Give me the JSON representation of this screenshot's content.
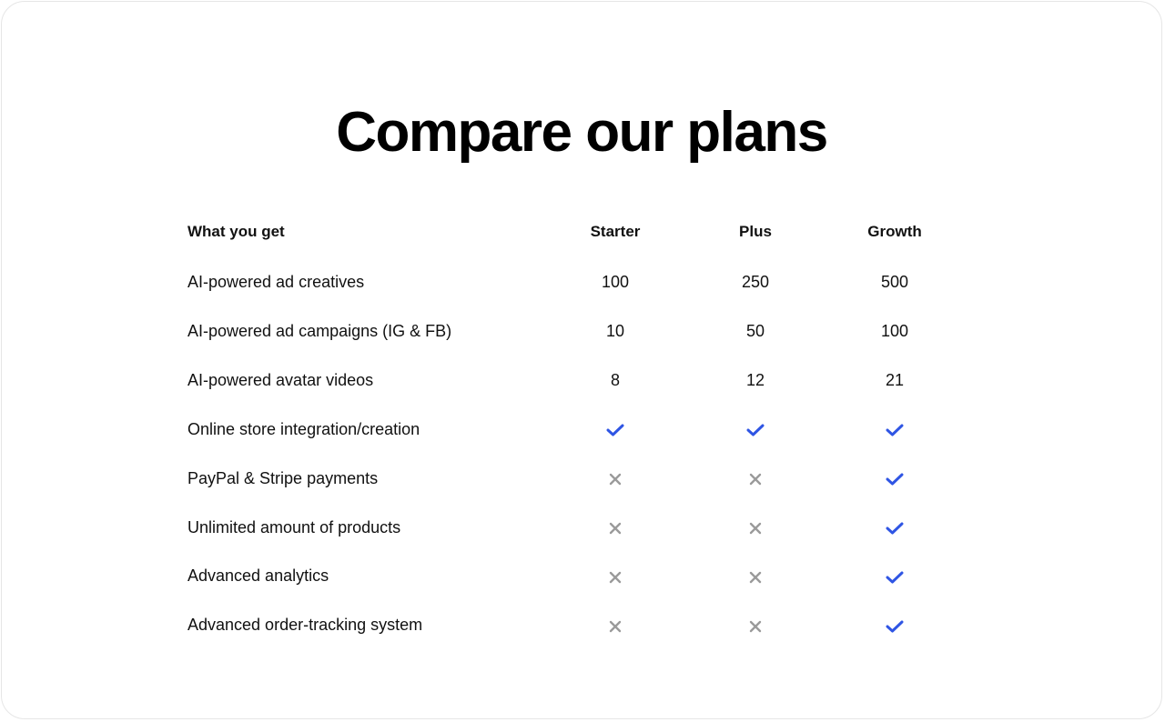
{
  "title": "Compare our plans",
  "table": {
    "header": {
      "label": "What you get",
      "plans": [
        "Starter",
        "Plus",
        "Growth"
      ]
    },
    "rows": [
      {
        "label": "AI-powered ad creatives",
        "values": [
          "100",
          "250",
          "500"
        ]
      },
      {
        "label": "AI-powered ad campaigns (IG & FB)",
        "values": [
          "10",
          "50",
          "100"
        ]
      },
      {
        "label": "AI-powered avatar videos",
        "values": [
          "8",
          "12",
          "21"
        ]
      },
      {
        "label": "Online store integration/creation",
        "values": [
          "check",
          "check",
          "check"
        ]
      },
      {
        "label": "PayPal & Stripe payments",
        "values": [
          "cross",
          "cross",
          "check"
        ]
      },
      {
        "label": "Unlimited amount of products",
        "values": [
          "cross",
          "cross",
          "check"
        ]
      },
      {
        "label": "Advanced analytics",
        "values": [
          "cross",
          "cross",
          "check"
        ]
      },
      {
        "label": "Advanced order-tracking system",
        "values": [
          "cross",
          "cross",
          "check"
        ]
      }
    ]
  },
  "colors": {
    "check": "#2f55e4",
    "cross": "#9a9a9a"
  }
}
